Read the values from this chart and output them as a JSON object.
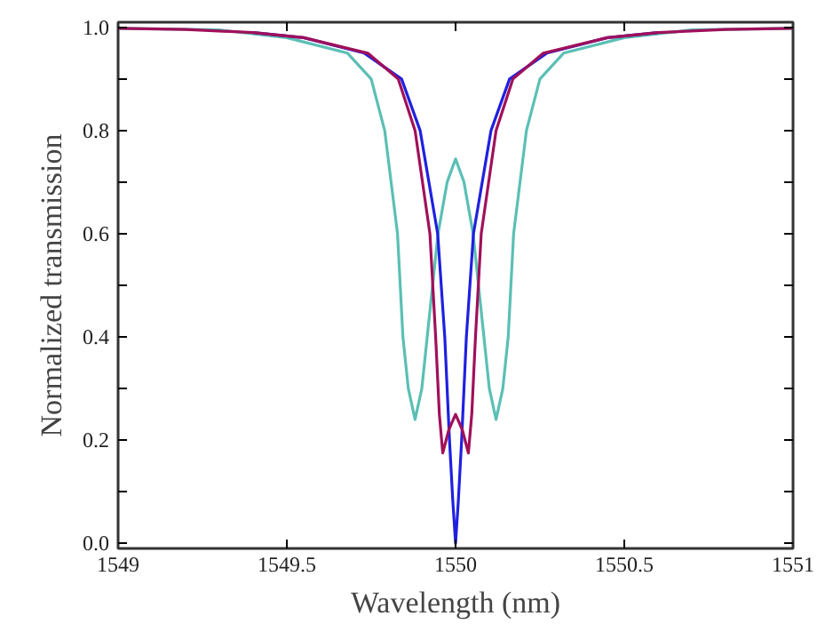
{
  "chart_data": {
    "type": "line",
    "xlabel": "Wavelength (nm)",
    "ylabel": "Normalized transmission",
    "xlim": [
      1549,
      1551
    ],
    "xticks": [
      1549,
      1549.5,
      1550,
      1550.5,
      1551
    ],
    "ylim": [
      -0.01,
      1.01
    ],
    "yticks": [
      {
        "value": 0,
        "label": "0.0"
      },
      {
        "value": 0.1,
        "label": null
      },
      0.2,
      {
        "value": 0.3,
        "label": null
      },
      0.4,
      {
        "value": 0.5,
        "label": null
      },
      0.6,
      {
        "value": 0.7,
        "label": null
      },
      0.8,
      {
        "value": 0.9,
        "label": null
      },
      {
        "value": 1,
        "label": "1.0"
      }
    ],
    "tick_labels": "xy",
    "grid": false,
    "marker": "none",
    "line_style": "solid",
    "series": [
      {
        "color": "#5bbfb5",
        "x": [
          1549,
          1549.3,
          1549.5,
          1549.68,
          1549.75,
          1549.79,
          1549.828,
          1549.844,
          1549.86,
          1549.88,
          1549.9,
          1549.916,
          1549.948,
          1549.975,
          1550,
          1550.025,
          1550.052,
          1550.084,
          1550.1,
          1550.12,
          1550.14,
          1550.156,
          1550.172,
          1550.21,
          1550.25,
          1550.32,
          1550.5,
          1550.7,
          1551
        ],
        "values": [
          0.998,
          0.995,
          0.98,
          0.95,
          0.9,
          0.8,
          0.6,
          0.4,
          0.3,
          0.24,
          0.3,
          0.4,
          0.6,
          0.7,
          0.745,
          0.7,
          0.6,
          0.4,
          0.3,
          0.24,
          0.3,
          0.4,
          0.6,
          0.8,
          0.9,
          0.95,
          0.98,
          0.995,
          0.998
        ]
      },
      {
        "color": "#2020e0",
        "x": [
          1549.4,
          1549.55,
          1549.73,
          1549.84,
          1549.895,
          1549.947,
          1549.968,
          1549.982,
          1549.992,
          1550,
          1550.008,
          1550.018,
          1550.032,
          1550.053,
          1550.105,
          1550.16,
          1550.27,
          1550.45,
          1550.6
        ],
        "values": [
          0.99,
          0.98,
          0.95,
          0.9,
          0.8,
          0.6,
          0.4,
          0.2,
          0.08,
          0.0,
          0.08,
          0.2,
          0.4,
          0.6,
          0.8,
          0.9,
          0.95,
          0.98,
          0.99
        ]
      },
      {
        "color": "#a0105a",
        "x": [
          1549,
          1549.2,
          1549.4,
          1549.55,
          1549.74,
          1549.83,
          1549.88,
          1549.924,
          1549.941,
          1549.952,
          1549.962,
          1549.98,
          1550,
          1550.02,
          1550.038,
          1550.048,
          1550.059,
          1550.076,
          1550.12,
          1550.17,
          1550.26,
          1550.45,
          1550.6,
          1550.8,
          1551
        ],
        "values": [
          0.998,
          0.996,
          0.99,
          0.98,
          0.95,
          0.9,
          0.8,
          0.6,
          0.4,
          0.25,
          0.175,
          0.22,
          0.25,
          0.22,
          0.175,
          0.25,
          0.4,
          0.6,
          0.8,
          0.9,
          0.95,
          0.98,
          0.99,
          0.996,
          0.998
        ]
      }
    ]
  }
}
